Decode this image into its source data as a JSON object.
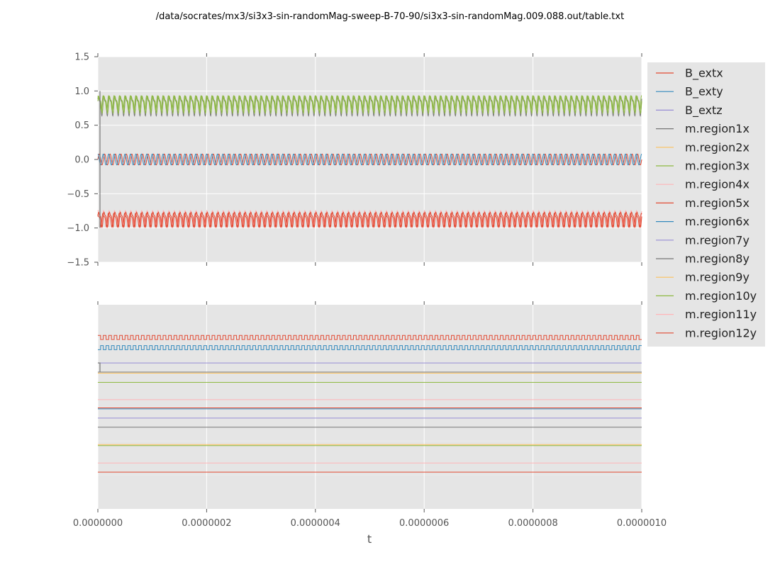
{
  "title": "/data/socrates/mx3/si3x3-sin-randomMag-sweep-B-70-90/si3x3-sin-randomMag.009.088.out/table.txt",
  "chart_data": [
    {
      "type": "line",
      "panel": "top",
      "xlim": [
        0,
        1e-06
      ],
      "ylim": [
        -1.5,
        1.5
      ],
      "yticks": [
        "1.5",
        "1.0",
        "0.5",
        "0.0",
        "−0.5",
        "−1.0",
        "−1.5"
      ],
      "ytick_values": [
        1.5,
        1.0,
        0.5,
        0.0,
        -0.5,
        -1.0,
        -1.5
      ],
      "grid": true,
      "oscillation_periods": 100,
      "series": [
        {
          "name": "B_extx",
          "kind": "sine",
          "center": 0.0,
          "amplitude": 0.08,
          "phase": 0.0,
          "color": "#e24a33"
        },
        {
          "name": "B_exty",
          "kind": "sine",
          "center": 0.0,
          "amplitude": 0.08,
          "phase": 1.57,
          "color": "#348abd"
        },
        {
          "name": "m.region1x",
          "kind": "wave",
          "center": 0.8,
          "amplitude": 0.17,
          "phase": 0.3,
          "color": "#777777"
        },
        {
          "name": "m.region3x",
          "kind": "wave",
          "center": 0.82,
          "amplitude": 0.15,
          "phase": 0.0,
          "color": "#8eba42"
        },
        {
          "name": "m.region10y",
          "kind": "wave",
          "center": 0.84,
          "amplitude": 0.13,
          "phase": 1.0,
          "color": "#8eba42"
        },
        {
          "name": "m.region4x",
          "kind": "wave",
          "center": -0.85,
          "amplitude": 0.15,
          "phase": 0.5,
          "color": "#ffb5b8"
        },
        {
          "name": "m.region5x",
          "kind": "wave",
          "center": -0.86,
          "amplitude": 0.13,
          "phase": 0.0,
          "color": "#e24a33"
        },
        {
          "name": "m.region12y",
          "kind": "wave",
          "center": -0.87,
          "amplitude": 0.12,
          "phase": 1.3,
          "color": "#e24a33"
        }
      ]
    },
    {
      "type": "line",
      "panel": "bottom",
      "xlim": [
        0,
        1e-06
      ],
      "xlabel": "t",
      "xticks": [
        "0.0000000",
        "0.0000002",
        "0.0000004",
        "0.0000006",
        "0.0000008",
        "0.0000010"
      ],
      "xtick_values": [
        0,
        2e-07,
        4e-07,
        6e-07,
        8e-07,
        1e-06
      ],
      "yticks": [],
      "grid": true,
      "oscillation_periods": 100,
      "series": [
        {
          "name": "B_extx",
          "kind": "square",
          "level": 0.84,
          "amplitude": 0.02,
          "phase": 0.0,
          "color": "#e24a33"
        },
        {
          "name": "B_exty",
          "kind": "square",
          "level": 0.79,
          "amplitude": 0.02,
          "phase": 0.5,
          "color": "#348abd"
        },
        {
          "name": "B_extz",
          "kind": "flat",
          "level": 0.715,
          "color": "#988ed5"
        },
        {
          "name": "m.region1x",
          "kind": "flat",
          "level": 0.67,
          "color": "#777777"
        },
        {
          "name": "m.region2x",
          "kind": "flat",
          "level": 0.665,
          "color": "#fbc15e"
        },
        {
          "name": "m.region3x",
          "kind": "flat",
          "level": 0.62,
          "color": "#8eba42"
        },
        {
          "name": "m.region4x",
          "kind": "flat",
          "level": 0.535,
          "color": "#ffb5b8"
        },
        {
          "name": "m.region5x",
          "kind": "flat",
          "level": 0.495,
          "color": "#e24a33"
        },
        {
          "name": "m.region6x",
          "kind": "flat",
          "level": 0.49,
          "color": "#348abd"
        },
        {
          "name": "m.region7y",
          "kind": "flat",
          "level": 0.445,
          "color": "#988ed5"
        },
        {
          "name": "m.region8y",
          "kind": "flat",
          "level": 0.4,
          "color": "#777777"
        },
        {
          "name": "m.region9y",
          "kind": "flat",
          "level": 0.315,
          "color": "#fbc15e"
        },
        {
          "name": "m.region10y",
          "kind": "flat",
          "level": 0.31,
          "color": "#8eba42"
        },
        {
          "name": "m.region11y",
          "kind": "flat",
          "level": 0.225,
          "color": "#ffb5b8"
        },
        {
          "name": "m.region12y",
          "kind": "flat",
          "level": 0.18,
          "color": "#e24a33"
        }
      ]
    }
  ],
  "legend": {
    "placement": "right of top panel",
    "entries": [
      {
        "label": "B_extx",
        "color": "#e24a33"
      },
      {
        "label": "B_exty",
        "color": "#348abd"
      },
      {
        "label": "B_extz",
        "color": "#988ed5"
      },
      {
        "label": "m.region1x",
        "color": "#777777"
      },
      {
        "label": "m.region2x",
        "color": "#fbc15e"
      },
      {
        "label": "m.region3x",
        "color": "#8eba42"
      },
      {
        "label": "m.region4x",
        "color": "#ffb5b8"
      },
      {
        "label": "m.region5x",
        "color": "#e24a33"
      },
      {
        "label": "m.region6x",
        "color": "#348abd"
      },
      {
        "label": "m.region7y",
        "color": "#988ed5"
      },
      {
        "label": "m.region8y",
        "color": "#777777"
      },
      {
        "label": "m.region9y",
        "color": "#fbc15e"
      },
      {
        "label": "m.region10y",
        "color": "#8eba42"
      },
      {
        "label": "m.region11y",
        "color": "#ffb5b8"
      },
      {
        "label": "m.region12y",
        "color": "#e24a33"
      }
    ]
  },
  "style": {
    "axes_background": "#e5e5e5",
    "grid_color": "#ffffff",
    "tick_color": "#555555"
  }
}
